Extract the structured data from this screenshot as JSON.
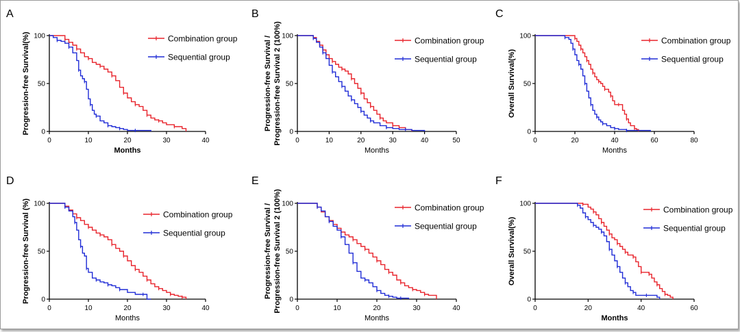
{
  "colors": {
    "combination": "#e8232b",
    "sequential": "#1f2bd6",
    "axis": "#000000"
  },
  "chart_data": [
    {
      "type": "line",
      "panel_label": "A",
      "ylabel": "Progression-free Survival(%)",
      "xlabel": "Months",
      "xlabel_bold": true,
      "xlim": [
        0,
        40
      ],
      "ylim": [
        0,
        100
      ],
      "xticks": [
        0,
        10,
        20,
        30,
        40
      ],
      "yticks": [
        0,
        50,
        100
      ],
      "series": [
        {
          "name": "Combination group",
          "color": "#e8232b",
          "x": [
            0,
            3,
            4,
            5,
            6,
            7,
            8,
            9,
            10,
            11,
            12,
            13,
            14,
            15,
            16,
            17,
            18,
            19,
            20,
            21,
            22,
            23,
            24,
            25,
            26,
            27,
            28,
            29,
            30,
            32,
            34,
            35
          ],
          "y": [
            100,
            100,
            96,
            93,
            90,
            86,
            82,
            78,
            76,
            72,
            70,
            68,
            65,
            62,
            58,
            53,
            46,
            40,
            35,
            31,
            28,
            26,
            22,
            17,
            14,
            12,
            11,
            9,
            7,
            5,
            3,
            0
          ]
        },
        {
          "name": "Sequential group",
          "color": "#1f2bd6",
          "x": [
            0,
            1,
            2,
            3,
            4,
            5,
            6,
            7,
            7.5,
            8,
            8.5,
            9,
            9.5,
            10,
            10.5,
            11,
            11.5,
            12,
            13,
            14,
            15,
            16,
            17,
            18,
            19,
            20,
            22,
            24,
            26
          ],
          "y": [
            100,
            98,
            95,
            94,
            92,
            88,
            82,
            74,
            64,
            58,
            55,
            52,
            44,
            34,
            28,
            22,
            18,
            16,
            11,
            9,
            6,
            5,
            4,
            3,
            2,
            1,
            1,
            1,
            0
          ]
        }
      ]
    },
    {
      "type": "line",
      "panel_label": "B",
      "ylabel": "Progression-free Survival / Progression-free Survival 2 (100%)",
      "ylabel_lines": [
        "Progression-free Survival /",
        "Progression-free Survival 2 (100%)"
      ],
      "xlabel": "Months",
      "xlabel_bold": false,
      "xlim": [
        0,
        50
      ],
      "ylim": [
        0,
        100
      ],
      "xticks": [
        0,
        10,
        20,
        30,
        40,
        50
      ],
      "yticks": [
        0,
        50,
        100
      ],
      "series": [
        {
          "name": "Combination group",
          "color": "#e8232b",
          "x": [
            0,
            3,
            5,
            6,
            7,
            8,
            9,
            10,
            11,
            12,
            13,
            14,
            15,
            16,
            17,
            18,
            19,
            20,
            21,
            22,
            23,
            24,
            25,
            26,
            27,
            28,
            30,
            32,
            34,
            36
          ],
          "y": [
            100,
            100,
            98,
            94,
            90,
            85,
            80,
            76,
            73,
            70,
            67,
            65,
            63,
            60,
            55,
            50,
            45,
            40,
            34,
            30,
            26,
            22,
            18,
            14,
            11,
            9,
            6,
            4,
            2,
            0
          ]
        },
        {
          "name": "Sequential group",
          "color": "#1f2bd6",
          "x": [
            0,
            3,
            5,
            6,
            7,
            8,
            9,
            10,
            11,
            12,
            13,
            14,
            15,
            16,
            17,
            18,
            19,
            20,
            21,
            22,
            23,
            24,
            26,
            28,
            30,
            32,
            34,
            36,
            38,
            40
          ],
          "y": [
            100,
            100,
            97,
            93,
            88,
            82,
            76,
            69,
            62,
            57,
            52,
            47,
            42,
            37,
            33,
            29,
            25,
            21,
            17,
            14,
            11,
            9,
            6,
            4,
            3,
            2,
            2,
            1,
            1,
            0
          ]
        }
      ]
    },
    {
      "type": "line",
      "panel_label": "C",
      "ylabel": "Overall Survival(%)",
      "xlabel": "Months",
      "xlabel_bold": false,
      "xlim": [
        0,
        80
      ],
      "ylim": [
        0,
        100
      ],
      "xticks": [
        0,
        20,
        40,
        60,
        80
      ],
      "yticks": [
        0,
        50,
        100
      ],
      "series": [
        {
          "name": "Combination group",
          "color": "#e8232b",
          "x": [
            0,
            18,
            20,
            21,
            22,
            23,
            24,
            25,
            26,
            27,
            28,
            29,
            30,
            31,
            32,
            33,
            34,
            35,
            36,
            37,
            38,
            39,
            40,
            42,
            44,
            45,
            46,
            47,
            48,
            50,
            51,
            52
          ],
          "y": [
            100,
            100,
            97,
            94,
            90,
            86,
            82,
            78,
            74,
            70,
            65,
            61,
            57,
            54,
            52,
            50,
            47,
            44,
            44,
            41,
            37,
            32,
            28,
            28,
            22,
            18,
            13,
            9,
            6,
            3,
            2,
            0
          ]
        },
        {
          "name": "Sequential group",
          "color": "#1f2bd6",
          "x": [
            0,
            10,
            15,
            17,
            18,
            19,
            20,
            21,
            22,
            23,
            24,
            25,
            26,
            27,
            28,
            29,
            30,
            31,
            32,
            33,
            34,
            36,
            38,
            40,
            42,
            44,
            46,
            48,
            56,
            58
          ],
          "y": [
            100,
            100,
            98,
            96,
            92,
            86,
            80,
            74,
            70,
            65,
            58,
            50,
            42,
            35,
            28,
            22,
            18,
            15,
            12,
            10,
            8,
            6,
            4,
            3,
            2,
            2,
            1,
            1,
            1,
            0
          ]
        }
      ]
    },
    {
      "type": "line",
      "panel_label": "D",
      "ylabel": "Progression-free Survival (%)",
      "xlabel": "Months",
      "xlabel_bold": false,
      "xlim": [
        0,
        40
      ],
      "ylim": [
        0,
        100
      ],
      "xticks": [
        0,
        10,
        20,
        30,
        40
      ],
      "yticks": [
        0,
        50,
        100
      ],
      "series": [
        {
          "name": "Combination group",
          "color": "#e8232b",
          "x": [
            0,
            3,
            4,
            5,
            6,
            7,
            8,
            9,
            10,
            11,
            12,
            13,
            14,
            15,
            16,
            17,
            18,
            19,
            20,
            21,
            22,
            23,
            24,
            25,
            26,
            27,
            28,
            29,
            30,
            31,
            32,
            33,
            34,
            35
          ],
          "y": [
            100,
            100,
            97,
            93,
            89,
            85,
            82,
            78,
            75,
            72,
            69,
            67,
            65,
            62,
            57,
            53,
            50,
            45,
            40,
            35,
            31,
            28,
            24,
            20,
            16,
            13,
            11,
            9,
            7,
            5,
            4,
            3,
            2,
            0
          ]
        },
        {
          "name": "Sequential group",
          "color": "#1f2bd6",
          "x": [
            0,
            3,
            4,
            5,
            6,
            6.5,
            7,
            7.5,
            8,
            8.5,
            9,
            9.5,
            10,
            11,
            12,
            13,
            14,
            15,
            16,
            17,
            18,
            20,
            22,
            24,
            25,
            26
          ],
          "y": [
            100,
            100,
            96,
            92,
            86,
            80,
            72,
            62,
            55,
            48,
            45,
            32,
            28,
            22,
            20,
            18,
            17,
            15,
            14,
            12,
            10,
            7,
            5,
            5,
            0,
            0
          ]
        }
      ]
    },
    {
      "type": "line",
      "panel_label": "E",
      "ylabel": "Progression-free Survival / Progression-free Survival 2 (100%)",
      "ylabel_lines": [
        "Progression-free Survival /",
        "Progression-free Survival 2 (100%)"
      ],
      "xlabel": "Months",
      "xlabel_bold": false,
      "xlim": [
        0,
        40
      ],
      "ylim": [
        0,
        100
      ],
      "xticks": [
        0,
        10,
        20,
        30,
        40
      ],
      "yticks": [
        0,
        50,
        100
      ],
      "series": [
        {
          "name": "Combination group",
          "color": "#e8232b",
          "x": [
            0,
            4,
            5,
            6,
            7,
            8,
            9,
            10,
            11,
            12,
            13,
            14,
            15,
            16,
            17,
            18,
            19,
            20,
            21,
            22,
            23,
            24,
            25,
            26,
            27,
            28,
            29,
            30,
            31,
            32,
            33,
            34,
            35
          ],
          "y": [
            100,
            100,
            96,
            91,
            86,
            82,
            78,
            74,
            70,
            67,
            65,
            62,
            58,
            55,
            52,
            48,
            44,
            40,
            36,
            31,
            28,
            25,
            20,
            17,
            14,
            12,
            10,
            9,
            7,
            5,
            4,
            4,
            0
          ]
        },
        {
          "name": "Sequential group",
          "color": "#1f2bd6",
          "x": [
            0,
            4,
            5,
            6,
            7,
            8,
            9,
            10,
            11,
            12,
            13,
            14,
            15,
            16,
            17,
            18,
            19,
            20,
            21,
            22,
            23,
            24,
            25,
            26,
            27,
            28
          ],
          "y": [
            100,
            100,
            96,
            92,
            86,
            81,
            76,
            72,
            65,
            57,
            48,
            38,
            29,
            22,
            20,
            17,
            13,
            9,
            6,
            4,
            3,
            2,
            1,
            1,
            1,
            0
          ]
        }
      ]
    },
    {
      "type": "line",
      "panel_label": "F",
      "ylabel": "Overall Survival(%)",
      "xlabel": "Months",
      "xlabel_bold": true,
      "xlim": [
        0,
        60
      ],
      "ylim": [
        0,
        100
      ],
      "xticks": [
        0,
        20,
        40,
        60
      ],
      "yticks": [
        0,
        50,
        100
      ],
      "series": [
        {
          "name": "Combination group",
          "color": "#e8232b",
          "x": [
            0,
            16,
            18,
            20,
            21,
            22,
            23,
            24,
            25,
            26,
            27,
            28,
            29,
            30,
            31,
            32,
            33,
            34,
            35,
            36,
            37,
            38,
            39,
            40,
            41,
            42,
            43,
            44,
            45,
            46,
            47,
            48,
            49,
            50,
            51,
            52
          ],
          "y": [
            100,
            100,
            99,
            96,
            94,
            91,
            88,
            84,
            80,
            76,
            72,
            68,
            64,
            62,
            58,
            55,
            52,
            49,
            46,
            46,
            44,
            39,
            34,
            28,
            28,
            28,
            26,
            22,
            18,
            15,
            11,
            8,
            5,
            4,
            2,
            0
          ]
        },
        {
          "name": "Sequential group",
          "color": "#1f2bd6",
          "x": [
            0,
            14,
            16,
            17,
            18,
            19,
            20,
            21,
            22,
            23,
            24,
            25,
            26,
            27,
            28,
            29,
            30,
            31,
            32,
            33,
            34,
            35,
            36,
            37,
            38,
            40,
            42,
            44,
            46,
            47
          ],
          "y": [
            100,
            100,
            98,
            95,
            90,
            86,
            83,
            80,
            77,
            75,
            73,
            70,
            66,
            60,
            52,
            46,
            40,
            34,
            28,
            22,
            17,
            13,
            9,
            7,
            4,
            4,
            4,
            4,
            2,
            0
          ]
        }
      ]
    }
  ]
}
